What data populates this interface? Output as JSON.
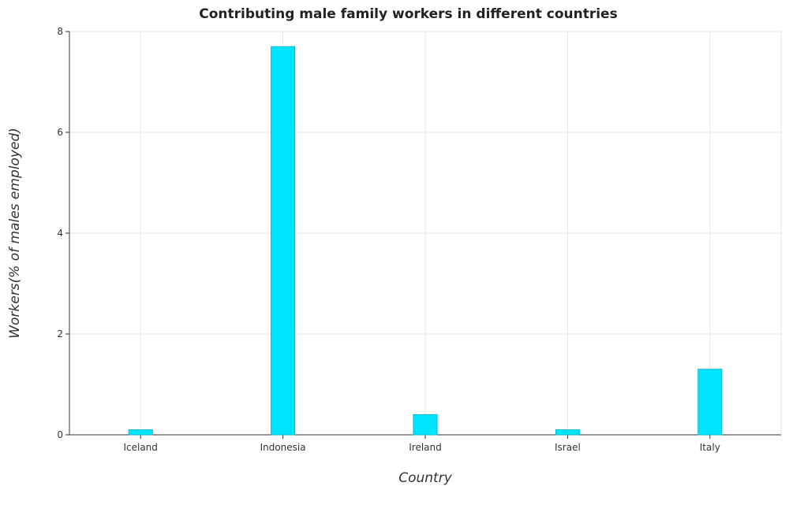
{
  "chart_data": {
    "type": "bar",
    "title": "Contributing male family workers in different countries",
    "xlabel": "Country",
    "ylabel": "Workers(% of males employed)",
    "categories": [
      "Iceland",
      "Indonesia",
      "Ireland",
      "Israel",
      "Italy"
    ],
    "values": [
      0.1,
      7.7,
      0.4,
      0.1,
      1.3
    ],
    "ylim": [
      0,
      8
    ],
    "yticks": [
      0,
      2,
      4,
      6,
      8
    ],
    "grid": true,
    "bar_color": "#00e5ff",
    "bar_edge_color": "#00b8cc"
  }
}
